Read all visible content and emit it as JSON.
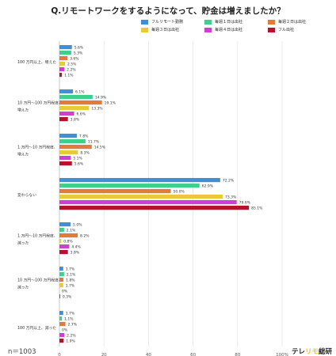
{
  "chart_data": {
    "type": "bar",
    "orientation": "horizontal",
    "title": "Q.リモートワークをするようになって、貯金は増えましたか？",
    "categories": [
      [
        "100 万円以上、増えた"
      ],
      [
        "10 万円〜100 万円程度、",
        "増えた"
      ],
      [
        "1 万円〜10 万円程度、",
        "増えた"
      ],
      [
        "変わらない"
      ],
      [
        "1 万円〜10 万円程度、",
        "減った"
      ],
      [
        "10 万円〜100 万円程度、",
        "減った"
      ],
      [
        "100 万円以上、減った"
      ]
    ],
    "series": [
      {
        "name": "フルリモート勤務",
        "color": "#3f8fd6",
        "values": [
          5.6,
          6.1,
          7.8,
          72.2,
          5.0,
          1.7,
          1.7
        ]
      },
      {
        "name": "毎週１日は出社",
        "color": "#3fcf8c",
        "values": [
          5.3,
          14.9,
          11.7,
          62.9,
          2.1,
          2.1,
          1.1
        ]
      },
      {
        "name": "毎週２日は出社",
        "color": "#e07b39",
        "values": [
          3.6,
          19.1,
          14.5,
          50.0,
          8.2,
          1.8,
          2.7
        ]
      },
      {
        "name": "毎週３日は出社",
        "color": "#e8c93a",
        "values": [
          2.5,
          13.3,
          8.3,
          73.3,
          0.8,
          1.7,
          0
        ]
      },
      {
        "name": "毎週４日は出社",
        "color": "#cf3fd6",
        "values": [
          2.2,
          6.6,
          5.1,
          79.6,
          4.4,
          0,
          2.2
        ]
      },
      {
        "name": "フル出社",
        "color": "#b3132b",
        "values": [
          1.1,
          3.8,
          5.6,
          85.1,
          3.8,
          0.3,
          1.9
        ]
      }
    ],
    "value_suffix": "%",
    "xlim": [
      0,
      100
    ],
    "xticks": [
      "0",
      "20",
      "40",
      "60",
      "80",
      "100%"
    ],
    "grid": true,
    "legend_position": "top-right"
  },
  "footer": {
    "sample_size": "n＝1003",
    "brand_prefix": "テレ",
    "brand_accent": "リモ",
    "brand_suffix": "総研"
  }
}
